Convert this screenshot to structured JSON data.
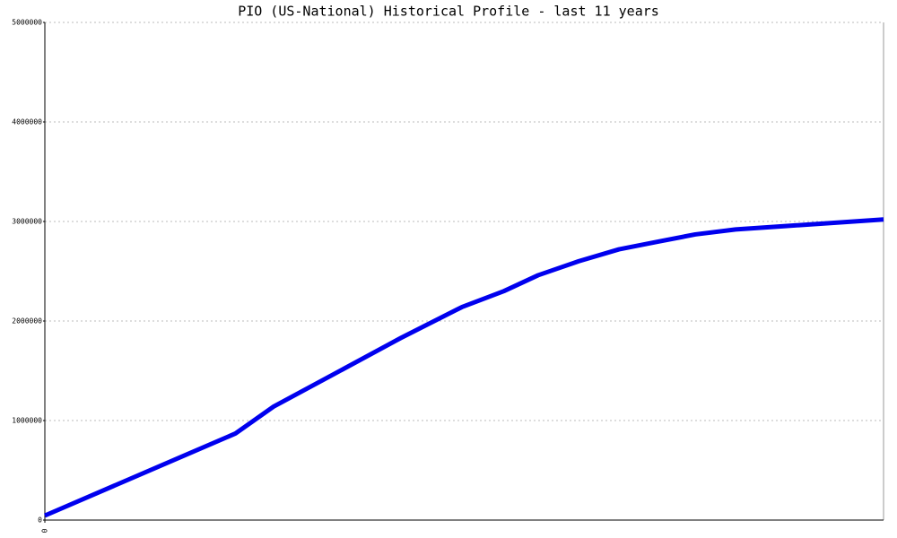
{
  "chart_data": {
    "type": "line",
    "title": "PIO (US-National) Historical Profile - last 11 years",
    "x": [
      0,
      2.5,
      3.0,
      3.8,
      4.67,
      5.47,
      6.02,
      6.47,
      7.0,
      7.53,
      8.06,
      8.53,
      9.06,
      11
    ],
    "series": [
      {
        "name": "PIO",
        "color": "#0000ee",
        "values": [
          45000,
          870000,
          1140000,
          1470000,
          1830000,
          2140000,
          2300000,
          2460000,
          2600000,
          2720000,
          2800000,
          2870000,
          2920000,
          3020000
        ]
      }
    ],
    "xlim": [
      0,
      11
    ],
    "xticks": [
      0
    ],
    "ylim": [
      0,
      5000000
    ],
    "yticks": [
      0,
      1000000,
      2000000,
      3000000,
      4000000,
      5000000
    ],
    "grid": true
  }
}
